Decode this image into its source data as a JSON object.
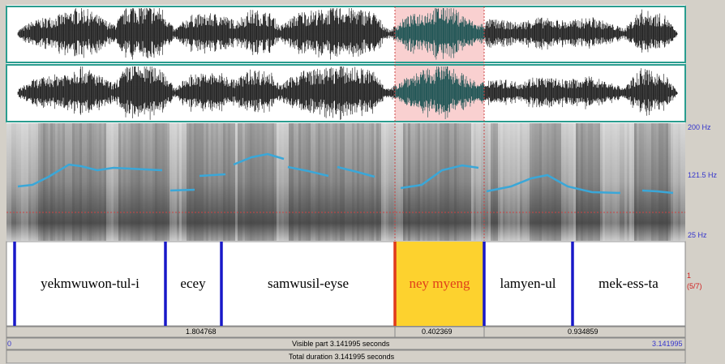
{
  "spectrogram": {
    "freq_labels": [
      "200 Hz",
      "121.5 Hz",
      "25 Hz"
    ]
  },
  "tier": {
    "intervals": [
      "yekmwuwon-tul-i",
      "ecey",
      "samwusil-eyse",
      "ney myeng",
      "lamyen-ul",
      "mek-ess-ta"
    ],
    "number": "1",
    "index": "(5/7)"
  },
  "durations": [
    "1.804768",
    "0.402369",
    "0.934859"
  ],
  "visible": {
    "start": "0",
    "label": "Visible part 3.141995 seconds",
    "end": "3.141995"
  },
  "total": "Total duration 3.141995 seconds"
}
